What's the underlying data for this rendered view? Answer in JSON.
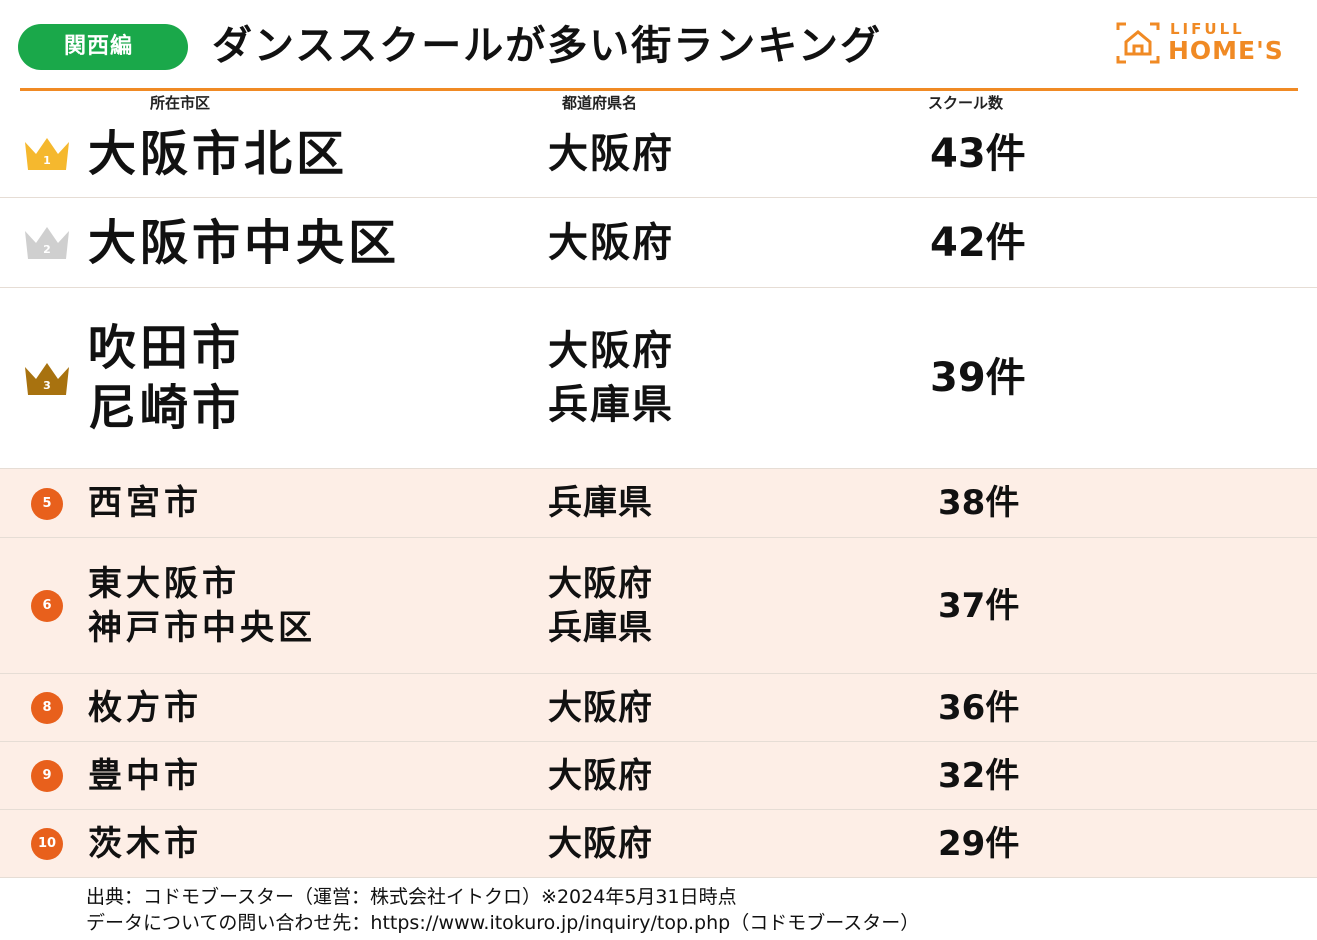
{
  "header": {
    "region_label": "関西編",
    "title": "ダンススクールが多い街ランキング",
    "logo_top": "LIFULL",
    "logo_bottom": "HOME'S",
    "logo_icon": "house-icon",
    "accent_color": "#f08a24",
    "badge_color": "#1aa84a"
  },
  "columns": {
    "city": "所在市区",
    "prefecture": "都道府県名",
    "count": "スクール数"
  },
  "rankings": [
    {
      "rank": "1",
      "icon": "gold-crown-icon",
      "cities": [
        "大阪市北区"
      ],
      "prefectures": [
        "大阪府"
      ],
      "count": "43件"
    },
    {
      "rank": "2",
      "icon": "silver-crown-icon",
      "cities": [
        "大阪市中央区"
      ],
      "prefectures": [
        "大阪府"
      ],
      "count": "42件"
    },
    {
      "rank": "3",
      "icon": "bronze-crown-icon",
      "cities": [
        "吹田市",
        "尼崎市"
      ],
      "prefectures": [
        "大阪府",
        "兵庫県"
      ],
      "count": "39件"
    },
    {
      "rank": "5",
      "icon": "rank-circle-icon",
      "cities": [
        "西宮市"
      ],
      "prefectures": [
        "兵庫県"
      ],
      "count": "38件"
    },
    {
      "rank": "6",
      "icon": "rank-circle-icon",
      "cities": [
        "東大阪市",
        "神戸市中央区"
      ],
      "prefectures": [
        "大阪府",
        "兵庫県"
      ],
      "count": "37件"
    },
    {
      "rank": "8",
      "icon": "rank-circle-icon",
      "cities": [
        "枚方市"
      ],
      "prefectures": [
        "大阪府"
      ],
      "count": "36件"
    },
    {
      "rank": "9",
      "icon": "rank-circle-icon",
      "cities": [
        "豊中市"
      ],
      "prefectures": [
        "大阪府"
      ],
      "count": "32件"
    },
    {
      "rank": "10",
      "icon": "rank-circle-icon",
      "cities": [
        "茨木市"
      ],
      "prefectures": [
        "大阪府"
      ],
      "count": "29件"
    }
  ],
  "crown_colors": {
    "gold": "#f5b82e",
    "silver": "#cfcfcf",
    "bronze": "#a8720f"
  },
  "rank_circle_color": "#e8601c",
  "footer": {
    "source": "出典：コドモブースター（運営：株式会社イトクロ）※2024年5月31日時点",
    "inquiry": "データについての問い合わせ先：https://www.itokuro.jp/inquiry/top.php（コドモブースター）"
  }
}
